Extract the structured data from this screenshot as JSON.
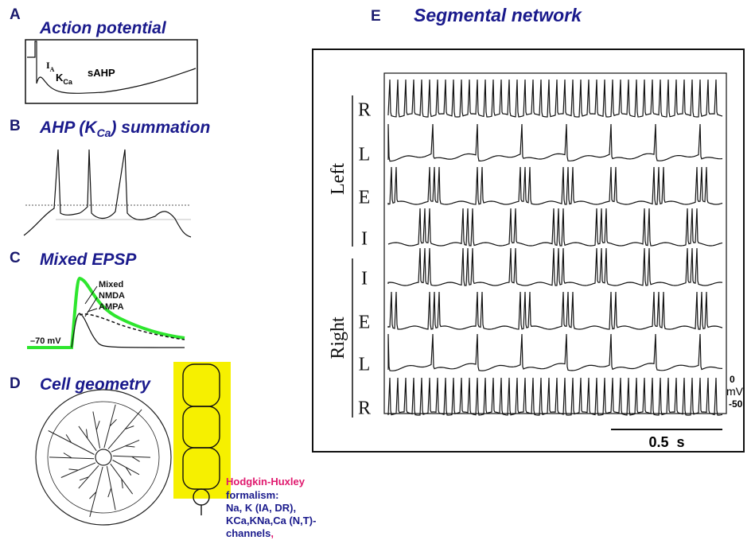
{
  "panel_a": {
    "letter": "A",
    "title": "Action potential",
    "label_i": "I",
    "label_i_sub": "A",
    "label_k": "K",
    "label_k_sub": "Ca",
    "label_sahp": "sAHP"
  },
  "panel_b": {
    "letter": "B",
    "title_pre": "AHP (K",
    "title_sub": "Ca",
    "title_post": ") summation"
  },
  "panel_c": {
    "letter": "C",
    "title": "Mixed EPSP",
    "legend": [
      "Mixed",
      "NMDA",
      "AMPA"
    ],
    "baseline_label": "–70 mV"
  },
  "panel_d": {
    "letter": "D",
    "title": "Cell geometry",
    "text_lines": [
      "Hodgkin-Huxley",
      "formalism:",
      "Na, K (IA, DR),",
      "KCa,KNa,Ca (N,T)-",
      "channels"
    ],
    "trailing_comma": ","
  },
  "panel_e": {
    "letter": "E",
    "title": "Segmental network",
    "group_left": "Left",
    "group_right": "Right",
    "row_labels": [
      "R",
      "L",
      "E",
      "I",
      "I",
      "E",
      "L",
      "R"
    ],
    "scale_top": "0",
    "scale_unit": "mV",
    "scale_bottom": "-50",
    "time_bar": "0.5  s"
  }
}
